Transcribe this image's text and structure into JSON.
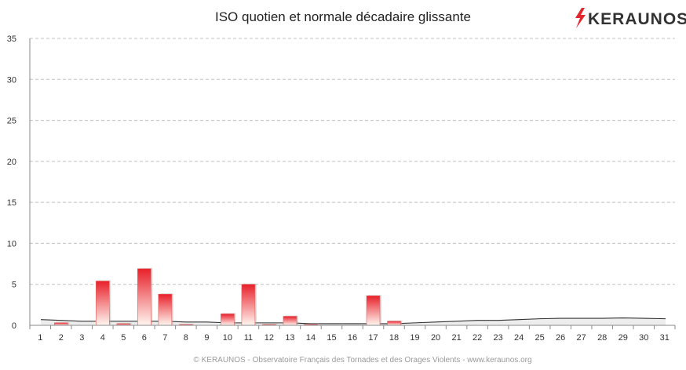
{
  "chart_data": {
    "type": "bar",
    "title": "ISO quotien et normale décadaire glissante",
    "categories": [
      "1",
      "2",
      "3",
      "4",
      "5",
      "6",
      "7",
      "8",
      "9",
      "10",
      "11",
      "12",
      "13",
      "14",
      "15",
      "16",
      "17",
      "18",
      "19",
      "20",
      "21",
      "22",
      "23",
      "24",
      "25",
      "26",
      "27",
      "28",
      "29",
      "30",
      "31"
    ],
    "series": [
      {
        "type": "bar",
        "values": [
          0,
          0.3,
          0,
          5.4,
          0.2,
          6.9,
          3.8,
          0.1,
          0,
          1.4,
          5.0,
          0.1,
          1.1,
          0.1,
          0,
          0,
          3.6,
          0.5,
          0,
          0,
          0,
          0,
          0,
          0,
          0,
          0,
          0,
          0,
          0,
          0,
          0
        ]
      },
      {
        "type": "area",
        "values": [
          0.7,
          0.6,
          0.5,
          0.5,
          0.5,
          0.5,
          0.5,
          0.4,
          0.4,
          0.3,
          0.3,
          0.3,
          0.3,
          0.2,
          0.2,
          0.2,
          0.2,
          0.2,
          0.3,
          0.4,
          0.5,
          0.6,
          0.6,
          0.7,
          0.8,
          0.85,
          0.85,
          0.85,
          0.9,
          0.85,
          0.8
        ]
      }
    ],
    "ylim": [
      0,
      35
    ],
    "yticks": [
      0,
      5,
      10,
      15,
      20,
      25,
      30,
      35
    ],
    "grid": true,
    "xlabel": "",
    "ylabel": ""
  },
  "logo": {
    "text": "KERAUNOS"
  },
  "credit": "© KERAUNOS - Observatoire Français des Tornades et des Orages Violents - www.keraunos.org",
  "colors": {
    "bar_top": "#e8202a",
    "bar_bottom": "#fff6f0",
    "area_fill": "#ededed",
    "area_line": "#333333",
    "grid": "#c0c0c0",
    "logo_bolt": "#e3262c"
  }
}
